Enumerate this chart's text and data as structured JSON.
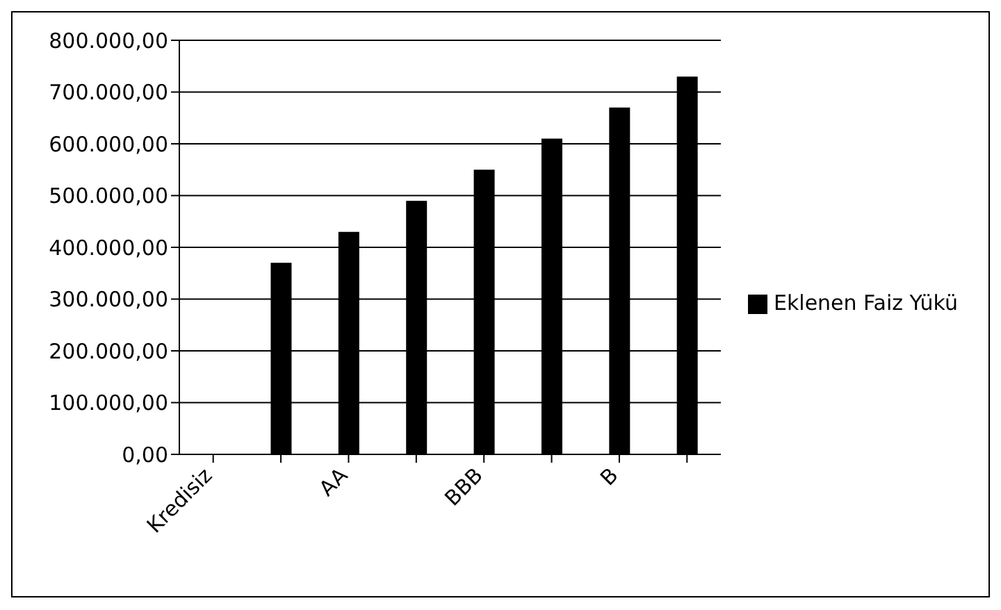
{
  "chart_data": {
    "type": "bar",
    "categories": [
      "Kredisiz",
      null,
      "AA",
      null,
      "BBB",
      null,
      "B",
      null
    ],
    "series": [
      {
        "name": "Eklenen Faiz Yükü",
        "color": "#000000",
        "values": [
          0,
          370000,
          430000,
          490000,
          550000,
          610000,
          670000,
          730000
        ]
      }
    ],
    "ylim": [
      0,
      800000
    ],
    "yticks": [
      {
        "value": 0,
        "label": "0,00"
      },
      {
        "value": 100000,
        "label": "100.000,00"
      },
      {
        "value": 200000,
        "label": "200.000,00"
      },
      {
        "value": 300000,
        "label": "300.000,00"
      },
      {
        "value": 400000,
        "label": "400.000,00"
      },
      {
        "value": 500000,
        "label": "500.000,00"
      },
      {
        "value": 600000,
        "label": "600.000,00"
      },
      {
        "value": 700000,
        "label": "700.000,00"
      },
      {
        "value": 800000,
        "label": "800.000,00"
      }
    ],
    "grid": "y",
    "legend": "right"
  }
}
